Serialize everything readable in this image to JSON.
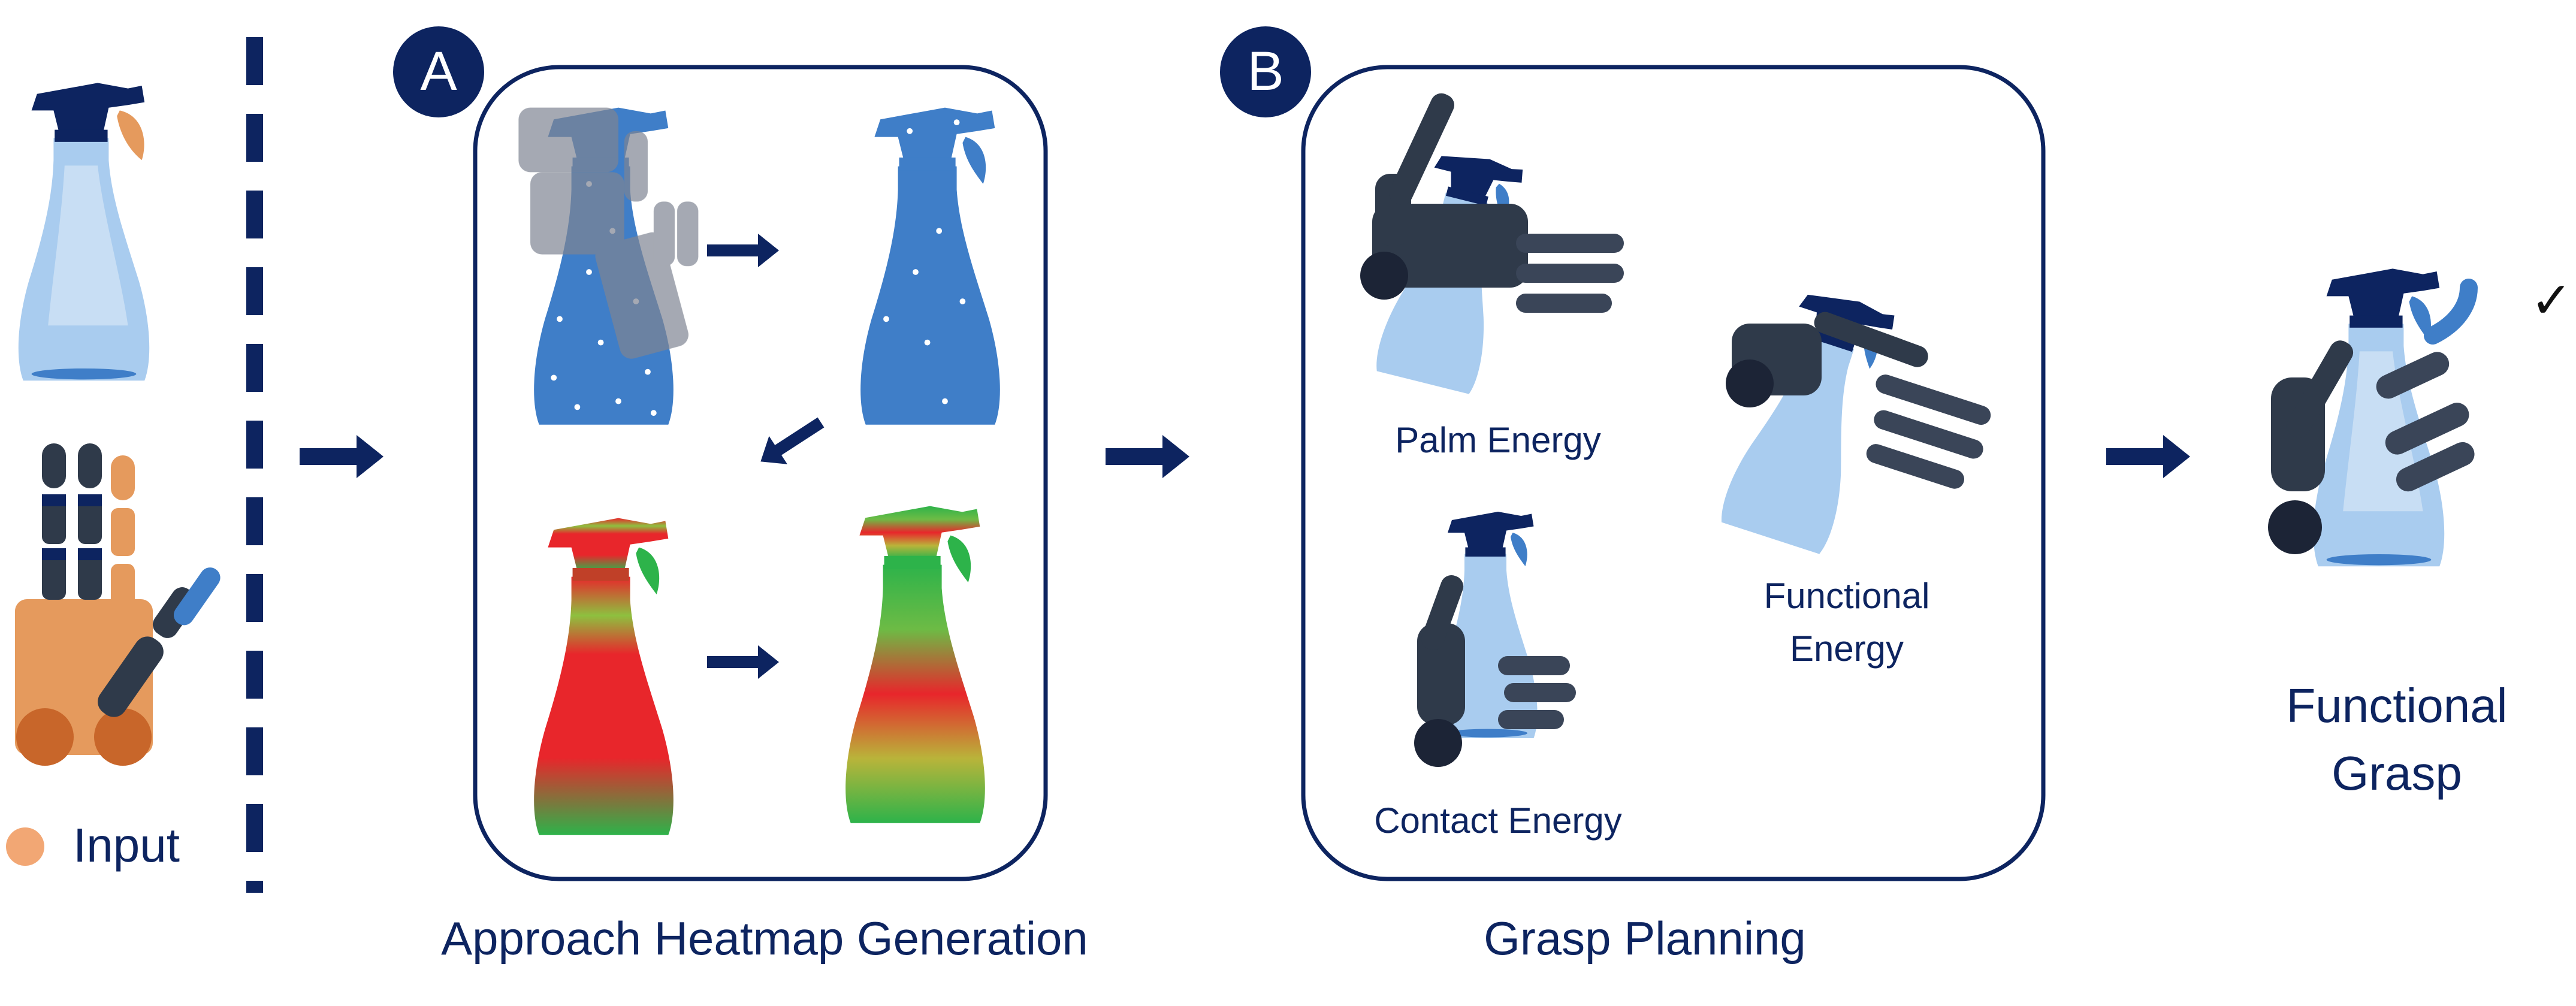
{
  "colors": {
    "navy": "#0d2460",
    "bottle_light": "#a9ccef",
    "bottle_blue": "#3f7ec8",
    "hand_orange": "#e59a5d",
    "hand_dark": "#2f3a4a",
    "heat_red": "#e8262b",
    "heat_green": "#2db34a"
  },
  "input": {
    "label": "Input"
  },
  "section_a": {
    "badge": "A",
    "caption": "Approach Heatmap Generation"
  },
  "section_b": {
    "badge": "B",
    "caption": "Grasp Planning",
    "palm_label": "Palm Energy",
    "contact_label": "Contact Energy",
    "functional_label_line1": "Functional",
    "functional_label_line2": "Energy"
  },
  "output": {
    "label_line1": "Functional",
    "label_line2": "Grasp",
    "check": "✓"
  },
  "icons": [
    "spray-bottle-icon",
    "robot-hand-icon",
    "arrow-right-icon",
    "check-icon"
  ]
}
